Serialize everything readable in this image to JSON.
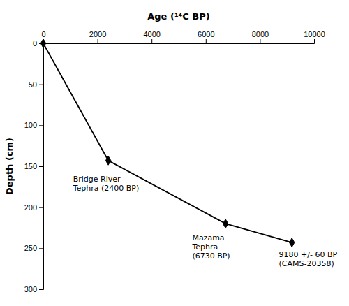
{
  "chart_data": {
    "type": "line",
    "x": [
      0,
      2400,
      6730,
      9180
    ],
    "values": [
      0,
      143,
      220,
      243
    ],
    "xlim": [
      0,
      10000
    ],
    "ylim": [
      300,
      0
    ],
    "xticks": [
      0,
      2000,
      4000,
      6000,
      8000,
      10000
    ],
    "yticks": [
      0,
      50,
      100,
      150,
      200,
      250,
      300
    ],
    "xlabel": "Age (¹⁴C BP)",
    "ylabel": "Depth (cm)",
    "color": "#000000",
    "marker": "diamond",
    "annotations": [
      {
        "text": "Bridge River\nTephra (2400 BP)",
        "x": 1100,
        "y": 160
      },
      {
        "text": "Mazama\nTephra\n(6730 BP)",
        "x": 5500,
        "y": 232
      },
      {
        "text": "9180 +/- 60 BP\n(CAMS-20358)",
        "x": 8700,
        "y": 252
      }
    ]
  }
}
